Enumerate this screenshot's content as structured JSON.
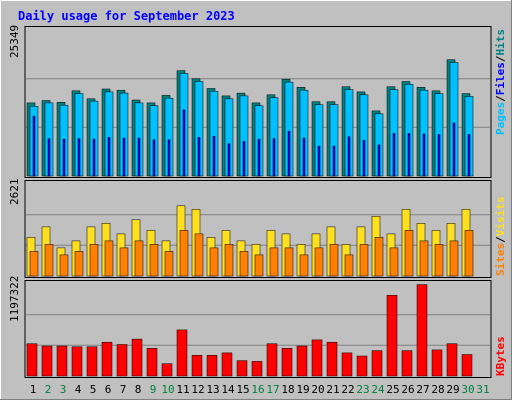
{
  "title": "Daily usage for September 2023",
  "colors": {
    "hits": "#008080",
    "files": "#0000ff",
    "pages": "#00c0ff",
    "visits": "#ffe020",
    "sites": "#ff8000",
    "kbytes": "#ff0000",
    "weekend_day": "#008040"
  },
  "chart_data": [
    {
      "type": "bar",
      "panel": "top",
      "title": "Daily usage for September 2023",
      "ymax_label": "25349",
      "ylim": [
        0,
        25349
      ],
      "grid": true,
      "legend": [
        "Pages",
        "/",
        "Files",
        "/",
        "Hits"
      ],
      "categories": [
        "1",
        "2",
        "3",
        "4",
        "5",
        "6",
        "7",
        "8",
        "9",
        "10",
        "11",
        "12",
        "13",
        "14",
        "15",
        "16",
        "17",
        "18",
        "19",
        "20",
        "21",
        "22",
        "23",
        "24",
        "25",
        "26",
        "27",
        "28",
        "29",
        "30"
      ],
      "series": [
        {
          "name": "Hits",
          "values": [
            12700,
            13100,
            12800,
            14800,
            13400,
            15100,
            14900,
            13200,
            12700,
            14000,
            18300,
            16900,
            15200,
            13900,
            14400,
            12700,
            14100,
            16800,
            15400,
            12900,
            12900,
            15500,
            14600,
            11300,
            15500,
            16400,
            15400,
            14800,
            20200,
            14300
          ]
        },
        {
          "name": "Files",
          "values": [
            10400,
            6500,
            6400,
            6500,
            6400,
            6700,
            6600,
            6600,
            6300,
            6300,
            11500,
            6700,
            6900,
            5600,
            6000,
            6400,
            6500,
            7800,
            6600,
            5200,
            5200,
            6800,
            6200,
            5400,
            7400,
            7400,
            7300,
            7200,
            9200,
            7200
          ]
        },
        {
          "name": "Pages",
          "values": [
            12100,
            12700,
            12300,
            14300,
            13000,
            14600,
            14400,
            12700,
            12200,
            13500,
            17800,
            16400,
            14700,
            13400,
            13900,
            12200,
            13600,
            16300,
            14900,
            12400,
            12400,
            15000,
            14100,
            10800,
            15000,
            15900,
            14900,
            14300,
            19700,
            13800
          ]
        }
      ]
    },
    {
      "type": "bar",
      "panel": "middle",
      "ymax_label": "2621",
      "ylim": [
        0,
        2621
      ],
      "grid": true,
      "legend": [
        "Sites",
        "/",
        "Visits"
      ],
      "categories": [
        "1",
        "2",
        "3",
        "4",
        "5",
        "6",
        "7",
        "8",
        "9",
        "10",
        "11",
        "12",
        "13",
        "14",
        "15",
        "16",
        "17",
        "18",
        "19",
        "20",
        "21",
        "22",
        "23",
        "24",
        "25",
        "26",
        "27",
        "28",
        "29",
        "30"
      ],
      "series": [
        {
          "name": "Visits",
          "values": [
            1100,
            1400,
            800,
            1000,
            1400,
            1500,
            1200,
            1600,
            1300,
            1000,
            2000,
            1900,
            1100,
            1300,
            1000,
            900,
            1300,
            1200,
            900,
            1200,
            1400,
            900,
            1400,
            1700,
            1200,
            1900,
            1500,
            1300,
            1500,
            1900
          ]
        },
        {
          "name": "Sites",
          "values": [
            700,
            900,
            600,
            700,
            900,
            1000,
            800,
            1000,
            900,
            700,
            1300,
            1200,
            800,
            900,
            700,
            600,
            800,
            800,
            600,
            800,
            900,
            600,
            900,
            1100,
            800,
            1300,
            1000,
            900,
            1000,
            1300
          ]
        }
      ]
    },
    {
      "type": "bar",
      "panel": "bottom",
      "ymax_label": "1197322",
      "ylim": [
        0,
        1197322
      ],
      "grid": true,
      "legend": [
        "KBytes"
      ],
      "categories": [
        "1",
        "2",
        "3",
        "4",
        "5",
        "6",
        "7",
        "8",
        "9",
        "10",
        "11",
        "12",
        "13",
        "14",
        "15",
        "16",
        "17",
        "18",
        "19",
        "20",
        "21",
        "22",
        "23",
        "24",
        "25",
        "26",
        "27",
        "28",
        "29",
        "30"
      ],
      "series": [
        {
          "name": "KBytes",
          "values": [
            420000,
            390000,
            390000,
            380000,
            380000,
            440000,
            410000,
            480000,
            360000,
            160000,
            600000,
            270000,
            270000,
            300000,
            200000,
            190000,
            420000,
            360000,
            390000,
            470000,
            440000,
            300000,
            260000,
            330000,
            1050000,
            330000,
            1190000,
            340000,
            420000,
            280000
          ]
        }
      ]
    }
  ],
  "x_labels": [
    {
      "text": "1",
      "weekend": false
    },
    {
      "text": "2",
      "weekend": true
    },
    {
      "text": "3",
      "weekend": true
    },
    {
      "text": "4",
      "weekend": false
    },
    {
      "text": "5",
      "weekend": false
    },
    {
      "text": "6",
      "weekend": false
    },
    {
      "text": "7",
      "weekend": false
    },
    {
      "text": "8",
      "weekend": false
    },
    {
      "text": "9",
      "weekend": true
    },
    {
      "text": "10",
      "weekend": true
    },
    {
      "text": "11",
      "weekend": false
    },
    {
      "text": "12",
      "weekend": false
    },
    {
      "text": "13",
      "weekend": false
    },
    {
      "text": "14",
      "weekend": false
    },
    {
      "text": "15",
      "weekend": false
    },
    {
      "text": "16",
      "weekend": true
    },
    {
      "text": "17",
      "weekend": true
    },
    {
      "text": "18",
      "weekend": false
    },
    {
      "text": "19",
      "weekend": false
    },
    {
      "text": "20",
      "weekend": false
    },
    {
      "text": "21",
      "weekend": false
    },
    {
      "text": "22",
      "weekend": false
    },
    {
      "text": "23",
      "weekend": true
    },
    {
      "text": "24",
      "weekend": true
    },
    {
      "text": "25",
      "weekend": false
    },
    {
      "text": "26",
      "weekend": false
    },
    {
      "text": "27",
      "weekend": false
    },
    {
      "text": "28",
      "weekend": false
    },
    {
      "text": "29",
      "weekend": false
    },
    {
      "text": "30",
      "weekend": true
    },
    {
      "text": "31",
      "weekend": true
    }
  ]
}
